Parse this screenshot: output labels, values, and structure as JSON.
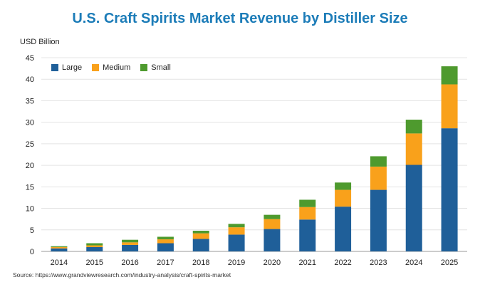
{
  "chart_data": {
    "type": "bar",
    "stacked": true,
    "title": "U.S. Craft Spirits Market Revenue by Distiller Size",
    "ylabel": "USD Billion",
    "xlabel": "",
    "ylim": [
      0,
      45
    ],
    "yticks": [
      0,
      5,
      10,
      15,
      20,
      25,
      30,
      35,
      40,
      45
    ],
    "grid": true,
    "legend_position": "top-left",
    "categories": [
      "2014",
      "2015",
      "2016",
      "2017",
      "2018",
      "2019",
      "2020",
      "2021",
      "2022",
      "2023",
      "2024",
      "2025"
    ],
    "series": [
      {
        "name": "Large",
        "color": "#1f5f99",
        "values": [
          0.7,
          1.0,
          1.5,
          1.9,
          2.9,
          3.9,
          5.2,
          7.4,
          10.4,
          14.3,
          20.1,
          28.6
        ]
      },
      {
        "name": "Medium",
        "color": "#f9a11b",
        "values": [
          0.3,
          0.4,
          0.6,
          0.9,
          1.3,
          1.7,
          2.3,
          2.9,
          3.9,
          5.4,
          7.3,
          10.2
        ]
      },
      {
        "name": "Small",
        "color": "#4e9a2e",
        "values": [
          0.2,
          0.5,
          0.6,
          0.6,
          0.6,
          0.8,
          1.0,
          1.7,
          1.7,
          2.4,
          3.2,
          4.2
        ]
      }
    ]
  },
  "source": "Source: https://www.grandviewresearch.com/industry-analysis/craft-spirits-market"
}
